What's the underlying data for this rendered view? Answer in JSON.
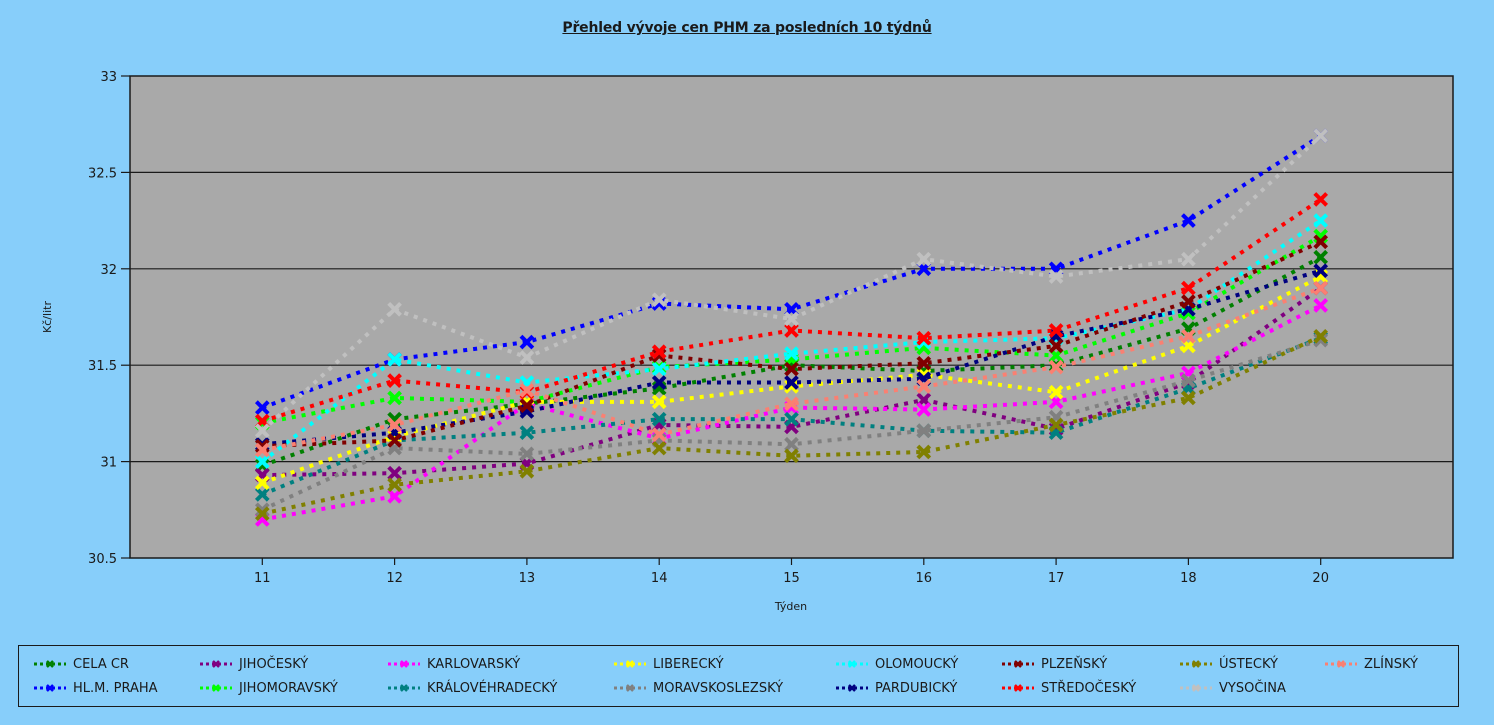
{
  "chart_data": {
    "type": "line",
    "title": "Přehled vývoje cen PHM za posledních 10 týdnů",
    "xlabel": "Týden",
    "ylabel": "Kč/litr",
    "categories": [
      "11",
      "12",
      "13",
      "14",
      "15",
      "16",
      "17",
      "18",
      "20"
    ],
    "yticks": [
      "30.5",
      "31",
      "31.5",
      "32",
      "32.5",
      "33"
    ],
    "ylim": [
      30.5,
      33
    ],
    "grid": true,
    "legend_position": "bottom",
    "plot_background": "#a9a9a9",
    "series": [
      {
        "name": "CELA CR",
        "color": "#008000",
        "values": [
          30.98,
          31.22,
          31.3,
          31.38,
          31.5,
          31.47,
          31.5,
          31.69,
          32.06
        ]
      },
      {
        "name": "HL.M. PRAHA",
        "color": "#0000ff",
        "values": [
          31.28,
          31.53,
          31.62,
          31.82,
          31.79,
          32.0,
          32.0,
          32.25,
          32.69
        ]
      },
      {
        "name": "JIHOČESKÝ",
        "color": "#800080",
        "values": [
          30.93,
          30.94,
          30.99,
          31.19,
          31.18,
          31.32,
          31.17,
          31.41,
          31.9
        ]
      },
      {
        "name": "JIHOMORAVSKÝ",
        "color": "#00ff00",
        "values": [
          31.2,
          31.33,
          31.31,
          31.49,
          31.53,
          31.59,
          31.55,
          31.77,
          32.17
        ]
      },
      {
        "name": "KARLOVARSKÝ",
        "color": "#ff00ff",
        "values": [
          30.7,
          30.82,
          31.3,
          31.12,
          31.28,
          31.27,
          31.31,
          31.46,
          31.81
        ]
      },
      {
        "name": "KRÁLOVÉHRADECKÝ",
        "color": "#008080",
        "values": [
          30.83,
          31.11,
          31.15,
          31.22,
          31.22,
          31.16,
          31.15,
          31.38,
          31.64
        ]
      },
      {
        "name": "LIBERECKÝ",
        "color": "#ffff00",
        "values": [
          30.89,
          31.13,
          31.31,
          31.31,
          31.39,
          31.45,
          31.36,
          31.6,
          31.96
        ]
      },
      {
        "name": "MORAVSKOSLEZSKÝ",
        "color": "#808080",
        "values": [
          30.75,
          31.07,
          31.04,
          31.11,
          31.09,
          31.16,
          31.23,
          31.42,
          31.63
        ]
      },
      {
        "name": "OLOMOUCKÝ",
        "color": "#00ffff",
        "values": [
          31.0,
          31.53,
          31.41,
          31.48,
          31.56,
          31.62,
          31.64,
          31.79,
          32.25
        ]
      },
      {
        "name": "PARDUBICKÝ",
        "color": "#000080",
        "values": [
          31.09,
          31.15,
          31.26,
          31.41,
          31.41,
          31.43,
          31.65,
          31.79,
          31.99
        ]
      },
      {
        "name": "PLZEŇSKÝ",
        "color": "#800000",
        "values": [
          31.08,
          31.11,
          31.29,
          31.55,
          31.48,
          31.51,
          31.6,
          31.83,
          32.14
        ]
      },
      {
        "name": "STŘEDOČESKÝ",
        "color": "#ff0000",
        "values": [
          31.21,
          31.42,
          31.36,
          31.57,
          31.68,
          31.64,
          31.68,
          31.9,
          32.36
        ]
      },
      {
        "name": "ÚSTECKÝ",
        "color": "#808000",
        "values": [
          30.73,
          30.88,
          30.95,
          31.07,
          31.03,
          31.05,
          31.19,
          31.33,
          31.65
        ]
      },
      {
        "name": "VYSOČINA",
        "color": "#c0c0c0",
        "values": [
          31.16,
          31.79,
          31.54,
          31.84,
          31.74,
          32.05,
          31.96,
          32.05,
          32.69
        ]
      },
      {
        "name": "ZLÍNSKÝ",
        "color": "#fa8072",
        "values": [
          31.06,
          31.19,
          31.37,
          31.14,
          31.3,
          31.39,
          31.49,
          31.65,
          31.9
        ]
      }
    ]
  }
}
